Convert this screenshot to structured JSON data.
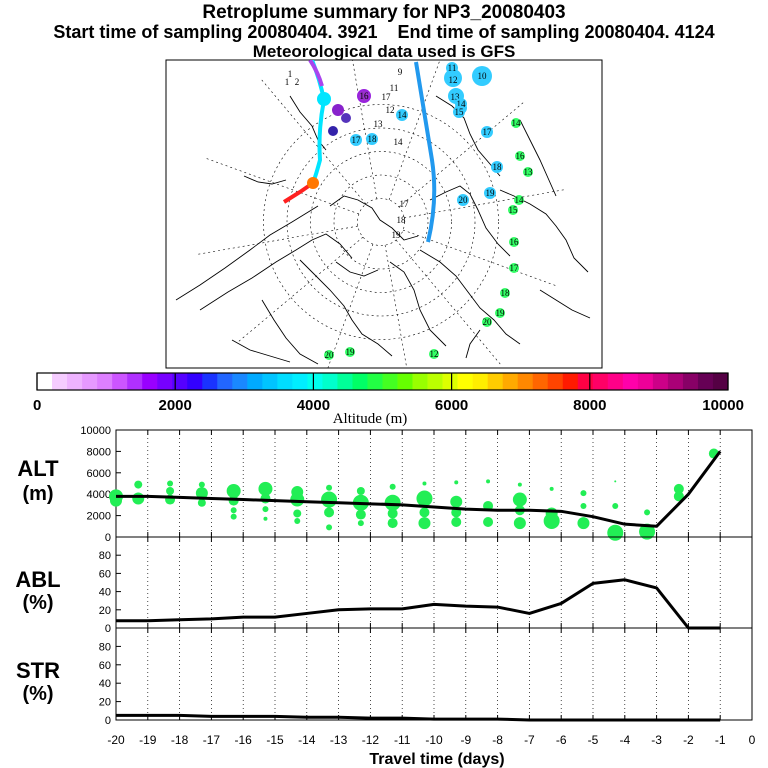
{
  "header": {
    "title": "Retroplume summary for NP3_20080403",
    "start_label": "Start time of sampling 20080404.  3921",
    "end_label": "End time of sampling 20080404.  4124",
    "met_label": "Meteorological data used is GFS"
  },
  "map": {
    "day_labels": [
      {
        "text": "1",
        "lon": -162,
        "lat": 62,
        "c": "#000000"
      },
      {
        "text": "2",
        "lon": -155,
        "lat": 64,
        "c": "#000000"
      },
      {
        "text": "1",
        "lon": -168,
        "lat": 60,
        "c": "#000000"
      },
      {
        "text": "9",
        "lon": -170,
        "lat": 67,
        "c": "#000000"
      },
      {
        "text": "10",
        "lon": -145,
        "lat": 60,
        "c": "#33ccff"
      },
      {
        "text": "11",
        "lon": -160,
        "lat": 61,
        "c": "#33ccff"
      },
      {
        "text": "12",
        "lon": -155,
        "lat": 61,
        "c": "#33ccff"
      },
      {
        "text": "13",
        "lon": -150,
        "lat": 63,
        "c": "#33ccff"
      },
      {
        "text": "14",
        "lon": -148,
        "lat": 64,
        "c": "#33ccff"
      },
      {
        "text": "15",
        "lon": -150,
        "lat": 66,
        "c": "#33ccff"
      },
      {
        "text": "11",
        "lon": -175,
        "lat": 67,
        "c": "#000000"
      },
      {
        "text": "17",
        "lon": -175,
        "lat": 70,
        "c": "#000000"
      },
      {
        "text": "12",
        "lon": -177,
        "lat": 71,
        "c": "#000000"
      },
      {
        "text": "13",
        "lon": -178,
        "lat": 74,
        "c": "#000000"
      },
      {
        "text": "14",
        "lon": 178,
        "lat": 78,
        "c": "#000000"
      },
      {
        "text": "17",
        "lon": -125,
        "lat": 66,
        "c": "#33ccff"
      },
      {
        "text": "18",
        "lon": -108,
        "lat": 66,
        "c": "#33ccff"
      },
      {
        "text": "19",
        "lon": -100,
        "lat": 70,
        "c": "#33ccff"
      },
      {
        "text": "20",
        "lon": -108,
        "lat": 77,
        "c": "#33ccff"
      },
      {
        "text": "14",
        "lon": -130,
        "lat": 58,
        "c": "#33ff66"
      },
      {
        "text": "16",
        "lon": -115,
        "lat": 60,
        "c": "#33ff66"
      },
      {
        "text": "13",
        "lon": -110,
        "lat": 60,
        "c": "#33ff66"
      },
      {
        "text": "14",
        "lon": -95,
        "lat": 63,
        "c": "#33ff66"
      },
      {
        "text": "15",
        "lon": -92,
        "lat": 64,
        "c": "#33ff66"
      },
      {
        "text": "16",
        "lon": -80,
        "lat": 64,
        "c": "#33ff66"
      },
      {
        "text": "17",
        "lon": -70,
        "lat": 62,
        "c": "#33ff66"
      },
      {
        "text": "18",
        "lon": -58,
        "lat": 58,
        "c": "#33ff66"
      },
      {
        "text": "19",
        "lon": -52,
        "lat": 62,
        "c": "#33ff66"
      },
      {
        "text": "20",
        "lon": -48,
        "lat": 56,
        "c": "#33ff66"
      },
      {
        "text": "16",
        "lon": 160,
        "lat": 60,
        "c": "#9933cc"
      },
      {
        "text": "17",
        "lon": -160,
        "lat": 85,
        "c": "#000000"
      },
      {
        "text": "18",
        "lon": -140,
        "lat": 87,
        "c": "#000000"
      },
      {
        "text": "19",
        "lon": 150,
        "lat": 88,
        "c": "#000000"
      },
      {
        "text": "20",
        "lon": 0,
        "lat": 50,
        "c": "#33ff66"
      },
      {
        "text": "19",
        "lon": 5,
        "lat": 48,
        "c": "#33ff66"
      },
      {
        "text": "17",
        "lon": 150,
        "lat": 73,
        "c": "#33ccff"
      },
      {
        "text": "18",
        "lon": 155,
        "lat": 70,
        "c": "#33ccff"
      },
      {
        "text": "14",
        "lon": 160,
        "lat": 68,
        "c": "#33ccff"
      },
      {
        "text": "12",
        "lon": -40,
        "lat": 55,
        "c": "#33ff66"
      }
    ]
  },
  "colorbar": {
    "tick_labels": [
      "0",
      "2000",
      "4000",
      "6000",
      "8000",
      "10000"
    ],
    "title": "Altitude (m)",
    "colors": [
      "#ffffff",
      "#f5ccff",
      "#eeb3ff",
      "#e699ff",
      "#dd7fff",
      "#cc55ff",
      "#b030ff",
      "#9900ff",
      "#7700ff",
      "#5500ff",
      "#3300ff",
      "#1a33ff",
      "#2266ff",
      "#1a88ff",
      "#00aaff",
      "#00c4ff",
      "#00ddff",
      "#00eeff",
      "#00ffee",
      "#00ffcc",
      "#00ff99",
      "#00ff66",
      "#22ff44",
      "#44ff22",
      "#66ff00",
      "#99ff00",
      "#bbff00",
      "#ddff00",
      "#ffff00",
      "#ffee00",
      "#ffcc00",
      "#ffaa00",
      "#ff8800",
      "#ff6600",
      "#ff4400",
      "#ff1a00",
      "#ff0044",
      "#ff0066",
      "#ff0088",
      "#ff00aa",
      "#ee0099",
      "#cc0088",
      "#aa0077",
      "#880066",
      "#660055",
      "#550044"
    ]
  },
  "axes": {
    "x_ticks": [
      -20,
      -19,
      -18,
      -17,
      -16,
      -15,
      -14,
      -13,
      -12,
      -11,
      -10,
      -9,
      -8,
      -7,
      -6,
      -5,
      -4,
      -3,
      -2,
      -1,
      0
    ],
    "x_tick_labels": [
      "-20",
      "-19",
      "-18",
      "-17",
      "-16",
      "-15",
      "-14",
      "-13",
      "-12",
      "-11",
      "-10",
      "-9",
      "-8",
      "-7",
      "-6",
      "-5",
      "-4",
      "-3",
      "-2",
      "-1",
      "0"
    ],
    "xlabel": "Travel time (days)"
  },
  "chart_data": [
    {
      "type": "line",
      "panel": "ALT",
      "ylabel_line1": "ALT",
      "ylabel_line2": "(m)",
      "ylim": [
        0,
        10000
      ],
      "xlim": [
        -20,
        0
      ],
      "y_ticks": [
        0,
        2000,
        4000,
        6000,
        8000,
        10000
      ],
      "y_tick_labels": [
        "0",
        "2000",
        "4000",
        "6000",
        "8000",
        "10000"
      ],
      "x": [
        -20,
        -19,
        -18,
        -17,
        -16,
        -15,
        -14,
        -13,
        -12,
        -11,
        -10,
        -9,
        -8,
        -7,
        -6,
        -5,
        -4,
        -3,
        -2,
        -1
      ],
      "values": [
        3800,
        3800,
        3700,
        3600,
        3500,
        3400,
        3300,
        3200,
        3100,
        3000,
        2800,
        2600,
        2500,
        2500,
        2400,
        1900,
        1200,
        1000,
        4000,
        8000
      ],
      "scatter_points": [
        {
          "x": -20,
          "y": 3800,
          "s": 7
        },
        {
          "x": -20,
          "y": 3400,
          "s": 6
        },
        {
          "x": -19.3,
          "y": 4900,
          "s": 4
        },
        {
          "x": -19.3,
          "y": 3600,
          "s": 6
        },
        {
          "x": -18.3,
          "y": 5000,
          "s": 3
        },
        {
          "x": -18.3,
          "y": 4300,
          "s": 4
        },
        {
          "x": -18.3,
          "y": 3500,
          "s": 5
        },
        {
          "x": -17.3,
          "y": 4900,
          "s": 3
        },
        {
          "x": -17.3,
          "y": 4100,
          "s": 6
        },
        {
          "x": -17.3,
          "y": 3200,
          "s": 4
        },
        {
          "x": -16.3,
          "y": 4300,
          "s": 7
        },
        {
          "x": -16.3,
          "y": 3400,
          "s": 5
        },
        {
          "x": -16.3,
          "y": 2500,
          "s": 3
        },
        {
          "x": -16.3,
          "y": 1900,
          "s": 3
        },
        {
          "x": -15.3,
          "y": 4500,
          "s": 7
        },
        {
          "x": -15.3,
          "y": 3600,
          "s": 5
        },
        {
          "x": -15.3,
          "y": 2600,
          "s": 3
        },
        {
          "x": -15.3,
          "y": 1700,
          "s": 2
        },
        {
          "x": -14.3,
          "y": 4200,
          "s": 6
        },
        {
          "x": -14.3,
          "y": 3500,
          "s": 7
        },
        {
          "x": -14.3,
          "y": 2200,
          "s": 4
        },
        {
          "x": -14.3,
          "y": 1500,
          "s": 3
        },
        {
          "x": -13.3,
          "y": 4600,
          "s": 3
        },
        {
          "x": -13.3,
          "y": 3500,
          "s": 8
        },
        {
          "x": -13.3,
          "y": 2300,
          "s": 5
        },
        {
          "x": -13.3,
          "y": 900,
          "s": 3
        },
        {
          "x": -12.3,
          "y": 4300,
          "s": 4
        },
        {
          "x": -12.3,
          "y": 3200,
          "s": 8
        },
        {
          "x": -12.3,
          "y": 2100,
          "s": 5
        },
        {
          "x": -12.3,
          "y": 1300,
          "s": 3
        },
        {
          "x": -11.3,
          "y": 4700,
          "s": 3
        },
        {
          "x": -11.3,
          "y": 3200,
          "s": 8
        },
        {
          "x": -11.3,
          "y": 2200,
          "s": 5
        },
        {
          "x": -11.3,
          "y": 1300,
          "s": 5
        },
        {
          "x": -10.3,
          "y": 5000,
          "s": 2
        },
        {
          "x": -10.3,
          "y": 3600,
          "s": 8
        },
        {
          "x": -10.3,
          "y": 2300,
          "s": 5
        },
        {
          "x": -10.3,
          "y": 1300,
          "s": 6
        },
        {
          "x": -9.3,
          "y": 5100,
          "s": 2
        },
        {
          "x": -9.3,
          "y": 3300,
          "s": 6
        },
        {
          "x": -9.3,
          "y": 2300,
          "s": 5
        },
        {
          "x": -9.3,
          "y": 1400,
          "s": 5
        },
        {
          "x": -8.3,
          "y": 5200,
          "s": 2
        },
        {
          "x": -8.3,
          "y": 2900,
          "s": 5
        },
        {
          "x": -8.3,
          "y": 1400,
          "s": 5
        },
        {
          "x": -7.3,
          "y": 4900,
          "s": 2
        },
        {
          "x": -7.3,
          "y": 3500,
          "s": 7
        },
        {
          "x": -7.3,
          "y": 2500,
          "s": 5
        },
        {
          "x": -7.3,
          "y": 1300,
          "s": 6
        },
        {
          "x": -6.3,
          "y": 4500,
          "s": 2
        },
        {
          "x": -6.3,
          "y": 2200,
          "s": 6
        },
        {
          "x": -6.3,
          "y": 1500,
          "s": 8
        },
        {
          "x": -5.3,
          "y": 4100,
          "s": 3
        },
        {
          "x": -5.3,
          "y": 2900,
          "s": 3
        },
        {
          "x": -5.3,
          "y": 1300,
          "s": 6
        },
        {
          "x": -4.3,
          "y": 5200,
          "s": 1
        },
        {
          "x": -4.3,
          "y": 2900,
          "s": 3
        },
        {
          "x": -4.3,
          "y": 400,
          "s": 8
        },
        {
          "x": -3.3,
          "y": 2300,
          "s": 3
        },
        {
          "x": -3.3,
          "y": 500,
          "s": 8
        },
        {
          "x": -2.3,
          "y": 4500,
          "s": 5
        },
        {
          "x": -2.3,
          "y": 3800,
          "s": 5
        },
        {
          "x": -1.2,
          "y": 7800,
          "s": 5
        }
      ]
    },
    {
      "type": "line",
      "panel": "ABL",
      "ylabel_line1": "ABL",
      "ylabel_line2": "(%)",
      "ylim": [
        0,
        100
      ],
      "xlim": [
        -20,
        0
      ],
      "y_ticks": [
        0,
        20,
        40,
        60,
        80
      ],
      "y_tick_labels": [
        "0",
        "20",
        "40",
        "60",
        "80"
      ],
      "x": [
        -20,
        -19,
        -18,
        -17,
        -16,
        -15,
        -14,
        -13,
        -12,
        -11,
        -10,
        -9,
        -8,
        -7,
        -6,
        -5,
        -4,
        -3,
        -2,
        -1
      ],
      "values": [
        8,
        8,
        9,
        10,
        12,
        12,
        16,
        20,
        21,
        21,
        26,
        24,
        23,
        16,
        27,
        49,
        53,
        44,
        0,
        0
      ]
    },
    {
      "type": "line",
      "panel": "STR",
      "ylabel_line1": "STR",
      "ylabel_line2": "(%)",
      "ylim": [
        0,
        100
      ],
      "xlim": [
        -20,
        0
      ],
      "y_ticks": [
        0,
        20,
        40,
        60,
        80
      ],
      "y_tick_labels": [
        "0",
        "20",
        "40",
        "60",
        "80"
      ],
      "x": [
        -20,
        -19,
        -18,
        -17,
        -16,
        -15,
        -14,
        -13,
        -12,
        -11,
        -10,
        -9,
        -8,
        -7,
        -6,
        -5,
        -4,
        -3,
        -2,
        -1
      ],
      "values": [
        5,
        5,
        5,
        4,
        4,
        4,
        3,
        3,
        2,
        2,
        1,
        1,
        1,
        0,
        0,
        0,
        0,
        0,
        0,
        0
      ]
    }
  ]
}
